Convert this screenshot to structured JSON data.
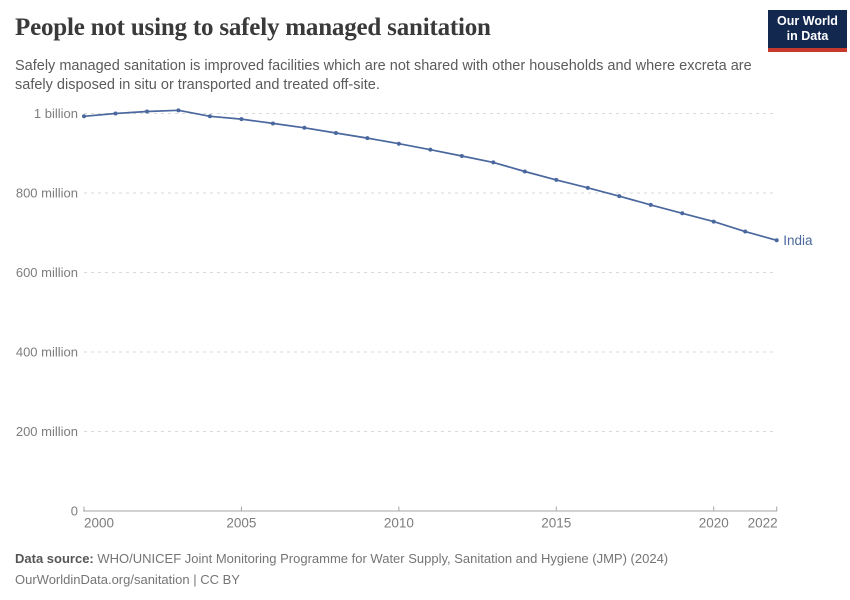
{
  "header": {
    "title": "People not using to safely managed sanitation",
    "subtitle": "Safely managed sanitation is improved facilities which are not shared with other households and where excreta are safely disposed in situ or transported and treated off-site."
  },
  "logo": {
    "line1": "Our World",
    "line2": "in Data",
    "bg_color": "#12284e",
    "stripe_color": "#c5392e"
  },
  "chart_data": {
    "type": "line",
    "title": "People not using to safely managed sanitation",
    "x": [
      2000,
      2001,
      2002,
      2003,
      2004,
      2005,
      2006,
      2007,
      2008,
      2009,
      2010,
      2011,
      2012,
      2013,
      2014,
      2015,
      2016,
      2017,
      2018,
      2019,
      2020,
      2021,
      2022
    ],
    "series": [
      {
        "name": "India",
        "color": "#4a679e",
        "values_millions": [
          993,
          1000,
          1005,
          1008,
          993,
          986,
          975,
          964,
          951,
          938,
          924,
          909,
          893,
          877,
          854,
          833,
          813,
          792,
          770,
          749,
          728,
          703,
          681
        ]
      }
    ],
    "end_label": "India",
    "x_tick_labels": [
      "2000",
      "2005",
      "2010",
      "2015",
      "2020",
      "2022"
    ],
    "y_ticks": [
      {
        "value_millions": 1000,
        "label": "1 billion"
      },
      {
        "value_millions": 800,
        "label": "800 million"
      },
      {
        "value_millions": 600,
        "label": "600 million"
      },
      {
        "value_millions": 400,
        "label": "400 million"
      },
      {
        "value_millions": 200,
        "label": "200 million"
      },
      {
        "value_millions": 0,
        "label": "0"
      }
    ],
    "ylim_millions": [
      0,
      1000
    ],
    "xlim": [
      2000,
      2022
    ],
    "grid": "dashed-horizontal",
    "legend_position": "line-end-label",
    "grid_color": "#d9d9d9",
    "axis_color": "#a6a6a6",
    "tick_label_color": "#7d7d7d"
  },
  "footer": {
    "source_label": "Data source:",
    "source_text": " WHO/UNICEF Joint Monitoring Programme for Water Supply, Sanitation and Hygiene (JMP) (2024)",
    "license_text": "OurWorldinData.org/sanitation | CC BY"
  }
}
